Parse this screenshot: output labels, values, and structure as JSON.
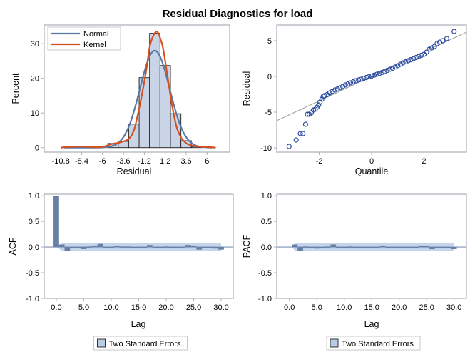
{
  "title": "Residual Diagnostics for load",
  "colors": {
    "bar_fill": "#c9d5e6",
    "bar_stroke": "#2b2b2b",
    "normal": "#5b79a8",
    "kernel": "#d6511f",
    "marker": "#2a4ba0",
    "refline": "#9a9a9a",
    "acf_bar": "#667fa5",
    "band": "#b9cde8",
    "frame": "#a9afb8"
  },
  "chart_data": [
    {
      "type": "bar",
      "id": "histogram",
      "xlabel": "Residual",
      "ylabel": "Percent",
      "xticks": [
        -10.8,
        -8.4,
        -6,
        -3.6,
        -1.2,
        1.2,
        3.6,
        6
      ],
      "yticks": [
        0,
        10,
        20,
        30
      ],
      "xlim": [
        -12.7,
        8.6
      ],
      "ylim": [
        -1.3,
        35.4
      ],
      "bin_width": 1.2,
      "bins": [
        {
          "center": -8.4,
          "value": 0.2
        },
        {
          "center": -4.8,
          "value": 1.2
        },
        {
          "center": -3.6,
          "value": 1.8
        },
        {
          "center": -2.4,
          "value": 6.8
        },
        {
          "center": -1.2,
          "value": 20.2
        },
        {
          "center": 0,
          "value": 33.0
        },
        {
          "center": 1.2,
          "value": 23.7
        },
        {
          "center": 2.4,
          "value": 9.8
        },
        {
          "center": 3.6,
          "value": 2.0
        },
        {
          "center": 4.8,
          "value": 0.3
        }
      ],
      "series": [
        {
          "name": "Normal",
          "type": "line",
          "mean": 0.0,
          "std": 1.71,
          "range": [
            -10.4,
            6.6
          ]
        },
        {
          "name": "Kernel",
          "type": "line",
          "points": [
            [
              -10.8,
              0
            ],
            [
              -10,
              0.2
            ],
            [
              -9,
              0.3
            ],
            [
              -8,
              0.3
            ],
            [
              -7,
              0.15
            ],
            [
              -6,
              0.2
            ],
            [
              -5,
              1.0
            ],
            [
              -4,
              1.5
            ],
            [
              -3,
              2.5
            ],
            [
              -2.4,
              5
            ],
            [
              -2,
              9
            ],
            [
              -1.5,
              15
            ],
            [
              -1,
              22
            ],
            [
              -0.5,
              30
            ],
            [
              0.2,
              33.5
            ],
            [
              0.7,
              31
            ],
            [
              1,
              28
            ],
            [
              1.5,
              20
            ],
            [
              2,
              12
            ],
            [
              2.5,
              6
            ],
            [
              3,
              3
            ],
            [
              3.5,
              1.5
            ],
            [
              4,
              0.8
            ],
            [
              5,
              0.3
            ],
            [
              6,
              0.2
            ],
            [
              7,
              0
            ]
          ]
        }
      ],
      "legend": {
        "position": "top-left",
        "entries": [
          "Normal",
          "Kernel"
        ]
      }
    },
    {
      "type": "scatter",
      "id": "qq",
      "xlabel": "Quantile",
      "ylabel": "Residual",
      "xticks": [
        -2,
        0,
        2
      ],
      "yticks": [
        -10,
        -5,
        0,
        5
      ],
      "xlim": [
        -3.62,
        3.62
      ],
      "ylim": [
        -10.6,
        7.2
      ],
      "reference_line": {
        "intercept": 0,
        "slope": 1.71
      },
      "points": [
        [
          -3.15,
          -9.8
        ],
        [
          -2.88,
          -8.9
        ],
        [
          -2.72,
          -8.0
        ],
        [
          -2.62,
          -8.0
        ],
        [
          -2.52,
          -6.7
        ],
        [
          -2.45,
          -5.3
        ],
        [
          -2.38,
          -5.3
        ],
        [
          -2.3,
          -5.1
        ],
        [
          -2.22,
          -4.7
        ],
        [
          -2.15,
          -4.6
        ],
        [
          -2.08,
          -4.3
        ],
        [
          -2.02,
          -4.0
        ],
        [
          -1.97,
          -3.6
        ],
        [
          -1.9,
          -3.2
        ],
        [
          -1.85,
          -2.8
        ],
        [
          -1.8,
          -2.7
        ],
        [
          -1.7,
          -2.55
        ],
        [
          -1.6,
          -2.3
        ],
        [
          -1.5,
          -2.1
        ],
        [
          -1.4,
          -1.9
        ],
        [
          -1.3,
          -1.75
        ],
        [
          -1.2,
          -1.6
        ],
        [
          -1.1,
          -1.4
        ],
        [
          -1.0,
          -1.2
        ],
        [
          -0.9,
          -1.05
        ],
        [
          -0.8,
          -0.9
        ],
        [
          -0.7,
          -0.75
        ],
        [
          -0.6,
          -0.6
        ],
        [
          -0.5,
          -0.5
        ],
        [
          -0.4,
          -0.4
        ],
        [
          -0.3,
          -0.27
        ],
        [
          -0.2,
          -0.15
        ],
        [
          -0.1,
          -0.05
        ],
        [
          0,
          0.05
        ],
        [
          0.1,
          0.18
        ],
        [
          0.2,
          0.3
        ],
        [
          0.3,
          0.42
        ],
        [
          0.4,
          0.55
        ],
        [
          0.5,
          0.7
        ],
        [
          0.6,
          0.85
        ],
        [
          0.7,
          1.0
        ],
        [
          0.8,
          1.15
        ],
        [
          0.9,
          1.32
        ],
        [
          1.0,
          1.5
        ],
        [
          1.1,
          1.7
        ],
        [
          1.2,
          1.9
        ],
        [
          1.3,
          2.05
        ],
        [
          1.4,
          2.2
        ],
        [
          1.5,
          2.35
        ],
        [
          1.6,
          2.5
        ],
        [
          1.7,
          2.65
        ],
        [
          1.8,
          2.8
        ],
        [
          1.9,
          2.95
        ],
        [
          2.0,
          3.1
        ],
        [
          2.1,
          3.4
        ],
        [
          2.2,
          3.8
        ],
        [
          2.3,
          4.0
        ],
        [
          2.4,
          4.2
        ],
        [
          2.5,
          4.6
        ],
        [
          2.6,
          4.8
        ],
        [
          2.72,
          5.0
        ],
        [
          2.87,
          5.3
        ],
        [
          3.15,
          6.3
        ]
      ]
    },
    {
      "type": "bar",
      "id": "acf",
      "xlabel": "Lag",
      "ylabel": "ACF",
      "xticks": [
        0,
        5,
        10,
        15,
        20,
        25,
        30
      ],
      "yticks": [
        -1.0,
        -0.5,
        0.0,
        0.5,
        1.0
      ],
      "xlim": [
        -2.2,
        32.2
      ],
      "ylim": [
        -1.0,
        1.03
      ],
      "lags": [
        0,
        1,
        2,
        3,
        4,
        5,
        6,
        7,
        8,
        9,
        10,
        11,
        12,
        13,
        14,
        15,
        16,
        17,
        18,
        19,
        20,
        21,
        22,
        23,
        24,
        25,
        26,
        27,
        28,
        29,
        30
      ],
      "values": [
        1.0,
        0.05,
        -0.08,
        0.0,
        -0.01,
        -0.04,
        0.01,
        0.03,
        0.06,
        0.0,
        0.0,
        0.02,
        0.01,
        0.01,
        0.0,
        0.0,
        0.0,
        0.04,
        -0.02,
        0.0,
        0.01,
        -0.02,
        -0.02,
        0.0,
        0.04,
        0.03,
        -0.05,
        0.0,
        0.0,
        -0.03,
        -0.05
      ],
      "std_error_band": 0.07,
      "legend": {
        "position": "bottom",
        "entries": [
          "Two Standard Errors"
        ]
      }
    },
    {
      "type": "bar",
      "id": "pacf",
      "xlabel": "Lag",
      "ylabel": "PACF",
      "xticks": [
        0,
        5,
        10,
        15,
        20,
        25,
        30
      ],
      "yticks": [
        -1.0,
        -0.5,
        0.0,
        0.5,
        1.0
      ],
      "xlim": [
        -2.3,
        32.25
      ],
      "ylim": [
        -1.0,
        1.03
      ],
      "lags": [
        1,
        2,
        3,
        4,
        5,
        6,
        7,
        8,
        9,
        10,
        11,
        12,
        13,
        14,
        15,
        16,
        17,
        18,
        19,
        20,
        21,
        22,
        23,
        24,
        25,
        26,
        27,
        28,
        29,
        30
      ],
      "values": [
        0.05,
        -0.08,
        0.01,
        -0.01,
        -0.03,
        0.0,
        0.01,
        0.05,
        0.0,
        0.0,
        0.01,
        0.0,
        0.0,
        0.0,
        0.0,
        0.0,
        0.03,
        -0.02,
        0.0,
        0.0,
        -0.02,
        -0.01,
        0.0,
        0.03,
        0.02,
        -0.04,
        0.0,
        -0.01,
        -0.02,
        -0.04
      ],
      "std_error_band": 0.07,
      "legend": {
        "position": "bottom",
        "entries": [
          "Two Standard Errors"
        ]
      }
    }
  ]
}
